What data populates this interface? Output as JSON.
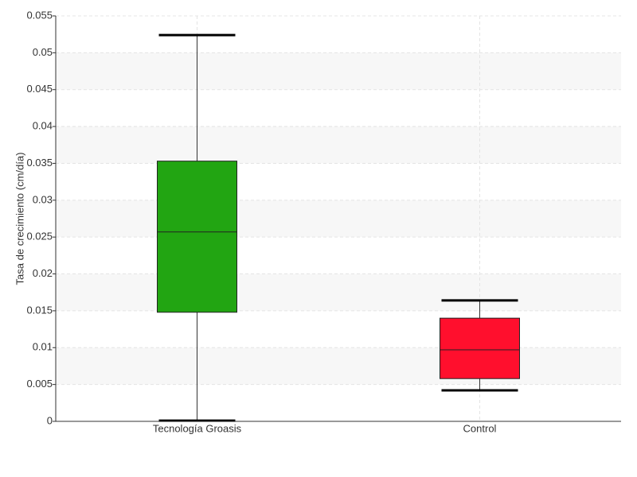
{
  "chart_data": {
    "type": "box",
    "y_label": "Tasa de crecimiento (cm/día)",
    "categories": [
      "Tecnología Groasis",
      "Control"
    ],
    "boxes": [
      {
        "whisker_low": 0.0001,
        "q1": 0.0148,
        "median": 0.0257,
        "q3": 0.0353,
        "whisker_high": 0.0524,
        "color": "#22a512"
      },
      {
        "whisker_low": 0.0042,
        "q1": 0.0058,
        "median": 0.0097,
        "q3": 0.014,
        "whisker_high": 0.0164,
        "color": "#ff0f2d"
      }
    ],
    "ylim": [
      0,
      0.055
    ],
    "yticks": [
      0,
      0.005,
      0.01,
      0.015,
      0.02,
      0.025,
      0.03,
      0.035,
      0.04,
      0.045,
      0.05,
      0.055
    ],
    "grid": true
  }
}
